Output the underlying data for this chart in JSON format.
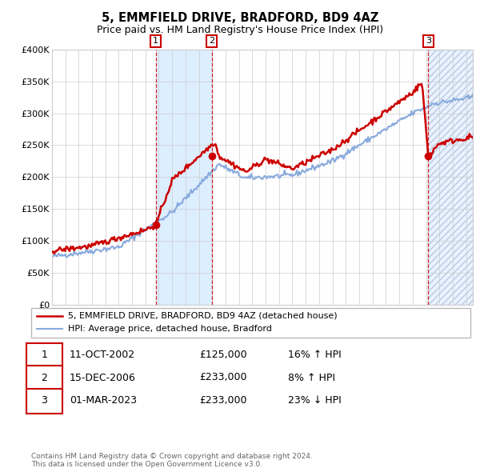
{
  "title": "5, EMMFIELD DRIVE, BRADFORD, BD9 4AZ",
  "subtitle": "Price paid vs. HM Land Registry's House Price Index (HPI)",
  "ylim": [
    0,
    400000
  ],
  "yticks": [
    0,
    50000,
    100000,
    150000,
    200000,
    250000,
    300000,
    350000,
    400000
  ],
  "ytick_labels": [
    "£0",
    "£50K",
    "£100K",
    "£150K",
    "£200K",
    "£250K",
    "£300K",
    "£350K",
    "£400K"
  ],
  "xlim_start": 1995.0,
  "xlim_end": 2026.5,
  "purchases": [
    {
      "num": 1,
      "date_str": "11-OCT-2002",
      "date_x": 2002.78,
      "price": 125000
    },
    {
      "num": 2,
      "date_str": "15-DEC-2006",
      "date_x": 2006.96,
      "price": 233000
    },
    {
      "num": 3,
      "date_str": "01-MAR-2023",
      "date_x": 2023.17,
      "price": 233000
    }
  ],
  "legend_entries": [
    {
      "label": "5, EMMFIELD DRIVE, BRADFORD, BD9 4AZ (detached house)",
      "color": "#cc0000",
      "lw": 1.8
    },
    {
      "label": "HPI: Average price, detached house, Bradford",
      "color": "#88aadd",
      "lw": 1.5
    }
  ],
  "table_rows": [
    {
      "num": 1,
      "date": "11-OCT-2002",
      "price": "£125,000",
      "hpi": "16% ↑ HPI"
    },
    {
      "num": 2,
      "date": "15-DEC-2006",
      "price": "£233,000",
      "hpi": "8% ↑ HPI"
    },
    {
      "num": 3,
      "date": "01-MAR-2023",
      "price": "£233,000",
      "hpi": "23% ↓ HPI"
    }
  ],
  "footer": "Contains HM Land Registry data © Crown copyright and database right 2024.\nThis data is licensed under the Open Government Licence v3.0.",
  "bg_color": "#ffffff",
  "grid_color": "#cccccc",
  "shade_color": "#ddeeff"
}
